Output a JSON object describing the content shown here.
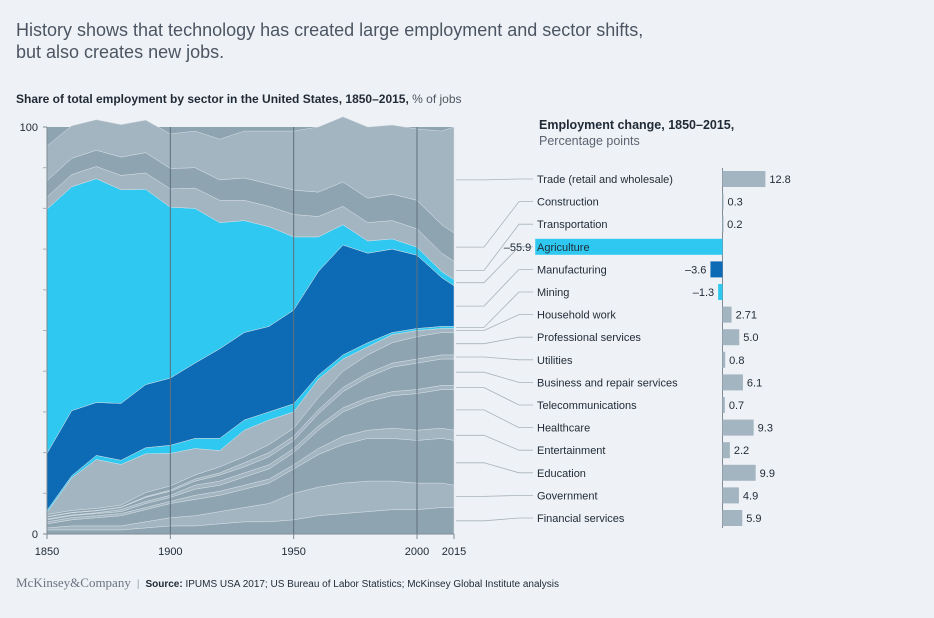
{
  "headline": "History shows that technology has created large employment and sector shifts, but also creates new jobs.",
  "subtitle": {
    "bold": "Share of total employment by sector in the United States, 1850–2015,",
    "unit": "% of jobs"
  },
  "right_title": {
    "line1": "Employment change, 1850–2015,",
    "line2": "Percentage points"
  },
  "footer": {
    "brand": "McKinsey&Company",
    "separator": "|",
    "source_label": "Source:",
    "source_text": "IPUMS USA 2017; US Bureau of Labor Statistics; McKinsey Global Institute analysis"
  },
  "colors": {
    "base": "#8fa4b1",
    "light": "#a3b5c1",
    "cyan": "#2ec8f0",
    "blue": "#0d6bb5",
    "bar": "#a3b5c1",
    "bg": "#eef1f5"
  },
  "chart_data": [
    {
      "type": "area",
      "stacking": "percent",
      "title": "Share of total employment by sector in the United States, 1850–2015",
      "ylabel": "% of jobs",
      "xlim": [
        1850,
        2015
      ],
      "ylim": [
        0,
        100
      ],
      "x_ticks": [
        1850,
        1900,
        1950,
        2000,
        2015
      ],
      "y_ticks": [
        0,
        100
      ],
      "x": [
        1850,
        1860,
        1870,
        1880,
        1890,
        1900,
        1910,
        1920,
        1930,
        1940,
        1950,
        1960,
        1970,
        1980,
        1990,
        2000,
        2010,
        2015
      ],
      "series_order_bottom_to_top": [
        "Financial services",
        "Government",
        "Education",
        "Entertainment",
        "Healthcare",
        "Telecommunications",
        "Business and repair services",
        "Utilities",
        "Professional services",
        "Household work",
        "Mining",
        "Manufacturing",
        "Agriculture",
        "Transportation",
        "Construction",
        "Trade (retail and wholesale)"
      ],
      "series": [
        {
          "name": "Financial services",
          "values": [
            1.0,
            1.0,
            1.0,
            1.0,
            1.5,
            2.0,
            2.0,
            2.5,
            3.0,
            3.0,
            3.5,
            4.5,
            5.0,
            5.5,
            6.0,
            6.0,
            6.5,
            6.5
          ]
        },
        {
          "name": "Government",
          "values": [
            0.5,
            1.0,
            1.0,
            1.0,
            1.5,
            2.0,
            2.5,
            3.0,
            3.5,
            4.5,
            6.5,
            7.0,
            7.5,
            7.5,
            7.0,
            6.5,
            6.0,
            5.5
          ]
        },
        {
          "name": "Education",
          "values": [
            1.0,
            1.5,
            2.0,
            2.5,
            3.0,
            3.5,
            4.0,
            4.0,
            4.5,
            5.0,
            6.0,
            8.0,
            9.5,
            10.5,
            10.5,
            10.5,
            11.0,
            11.0
          ]
        },
        {
          "name": "Entertainment",
          "values": [
            0.5,
            0.5,
            0.5,
            0.5,
            0.5,
            0.5,
            1.0,
            1.0,
            1.0,
            1.0,
            1.0,
            1.5,
            2.0,
            2.0,
            2.5,
            2.5,
            2.5,
            2.5
          ]
        },
        {
          "name": "Healthcare",
          "values": [
            0.5,
            0.5,
            0.5,
            0.5,
            1.0,
            1.0,
            1.5,
            1.5,
            2.0,
            2.5,
            3.0,
            4.5,
            6.0,
            7.0,
            8.0,
            9.0,
            9.5,
            10.0
          ]
        },
        {
          "name": "Telecommunications",
          "values": [
            0.2,
            0.2,
            0.2,
            0.5,
            0.5,
            0.5,
            1.0,
            1.0,
            1.0,
            1.0,
            1.0,
            1.0,
            1.0,
            1.0,
            1.0,
            1.0,
            1.0,
            1.0
          ]
        },
        {
          "name": "Business and repair services",
          "values": [
            0.5,
            0.5,
            0.5,
            0.5,
            1.0,
            1.0,
            1.0,
            1.5,
            1.5,
            2.0,
            2.0,
            3.0,
            4.0,
            5.0,
            6.0,
            6.5,
            6.5,
            6.5
          ]
        },
        {
          "name": "Utilities",
          "values": [
            0.1,
            0.1,
            0.1,
            0.1,
            0.2,
            0.3,
            0.5,
            0.5,
            1.0,
            1.0,
            1.0,
            1.0,
            1.0,
            1.0,
            1.0,
            1.0,
            1.0,
            1.0
          ]
        },
        {
          "name": "Professional services",
          "values": [
            0.5,
            0.5,
            0.5,
            0.5,
            1.0,
            1.0,
            1.0,
            1.5,
            1.5,
            2.0,
            2.0,
            3.0,
            4.0,
            4.5,
            5.0,
            5.5,
            5.5,
            5.5
          ]
        },
        {
          "name": "Household work",
          "values": [
            0.5,
            8.0,
            12.0,
            10.0,
            9.5,
            8.0,
            6.5,
            4.0,
            6.5,
            6.0,
            4.0,
            4.5,
            3.0,
            2.0,
            2.0,
            1.5,
            1.0,
            1.0
          ]
        },
        {
          "name": "Mining",
          "values": [
            0.5,
            0.5,
            1.0,
            1.0,
            1.5,
            2.0,
            2.5,
            3.0,
            2.5,
            2.0,
            2.0,
            1.0,
            1.0,
            1.0,
            0.5,
            0.5,
            0.5,
            0.5
          ]
        },
        {
          "name": "Manufacturing",
          "values": [
            14.0,
            16.0,
            13.0,
            14.0,
            15.5,
            16.5,
            18.5,
            22.0,
            21.5,
            21.0,
            23.0,
            25.5,
            27.0,
            22.0,
            20.5,
            18.0,
            12.0,
            10.0
          ]
        },
        {
          "name": "Agriculture",
          "values": [
            60.0,
            55.0,
            55.0,
            52.5,
            48.0,
            42.0,
            38.0,
            31.0,
            27.5,
            24.5,
            18.0,
            8.5,
            5.0,
            3.0,
            2.5,
            2.0,
            1.5,
            1.5
          ]
        },
        {
          "name": "Transportation",
          "values": [
            3.0,
            3.0,
            3.0,
            3.5,
            4.0,
            4.5,
            5.0,
            5.5,
            5.0,
            5.0,
            5.5,
            5.0,
            4.5,
            4.5,
            4.5,
            4.5,
            4.5,
            4.5
          ]
        },
        {
          "name": "Construction",
          "values": [
            4.0,
            4.0,
            4.0,
            4.5,
            5.0,
            5.0,
            5.0,
            5.0,
            5.5,
            5.5,
            6.0,
            6.0,
            6.0,
            6.0,
            6.5,
            7.0,
            7.0,
            7.0
          ]
        },
        {
          "name": "Trade (retail and wholesale)",
          "values": [
            8.5,
            8.0,
            7.5,
            8.0,
            8.0,
            8.5,
            9.0,
            10.0,
            11.5,
            13.0,
            14.5,
            16.0,
            16.0,
            17.5,
            17.0,
            17.5,
            23.0,
            26.0
          ]
        }
      ],
      "grid_x": [
        1900,
        1950,
        2000
      ]
    },
    {
      "type": "bar",
      "orientation": "horizontal",
      "title": "Employment change, 1850–2015",
      "units": "Percentage points",
      "categories": [
        "Trade (retail and wholesale)",
        "Construction",
        "Transportation",
        "Agriculture",
        "Manufacturing",
        "Mining",
        "Household work",
        "Professional services",
        "Utilities",
        "Business and repair services",
        "Telecommunications",
        "Healthcare",
        "Entertainment",
        "Education",
        "Government",
        "Financial services"
      ],
      "values": [
        12.8,
        0.3,
        0.2,
        -55.9,
        -3.6,
        -1.3,
        2.71,
        5.0,
        0.8,
        6.1,
        0.7,
        9.3,
        2.2,
        9.9,
        4.9,
        5.9
      ],
      "labels": [
        "12.8",
        "0.3",
        "0.2",
        "–55.9",
        "–3.6",
        "–1.3",
        "2.71",
        "5.0",
        "0.8",
        "6.1",
        "0.7",
        "9.3",
        "2.2",
        "9.9",
        "4.9",
        "5.9"
      ],
      "highlight_colors": {
        "Agriculture": "#2ec8f0",
        "Manufacturing": "#0d6bb5",
        "Mining": "#2ec8f0"
      }
    }
  ]
}
